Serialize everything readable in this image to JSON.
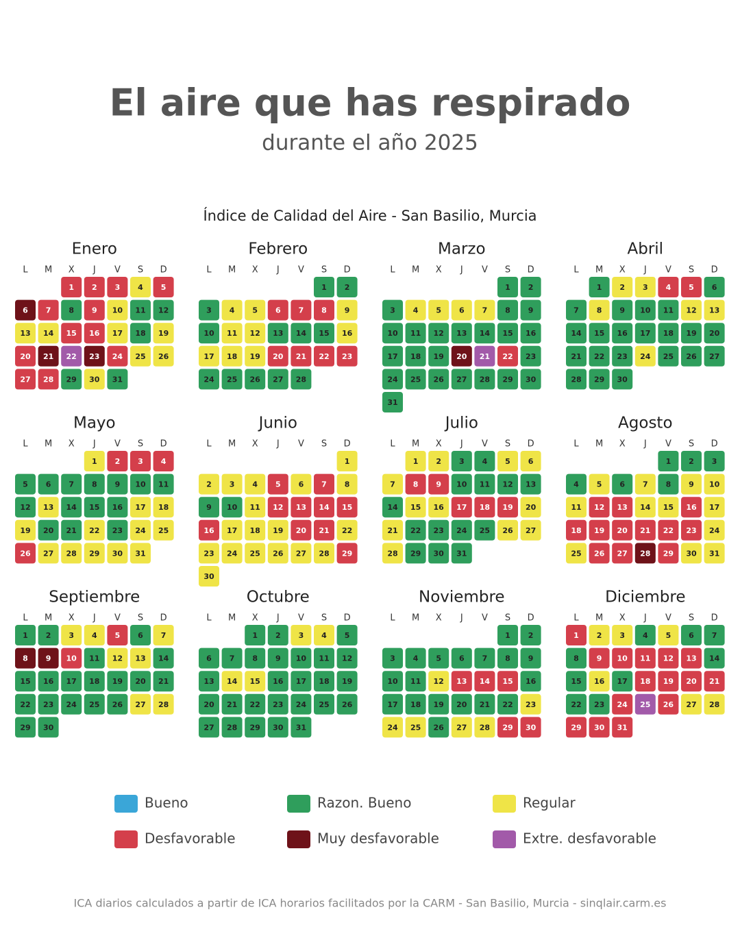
{
  "header": {
    "title": "El aire que has respirado",
    "subtitle": "durante el año 2025"
  },
  "chart_subtitle": "Índice de Calidad del Aire - San Basilio, Murcia",
  "weekdays": [
    "L",
    "M",
    "X",
    "J",
    "V",
    "S",
    "D"
  ],
  "legend": [
    {
      "label": "Bueno",
      "color": "#3aa6d8"
    },
    {
      "label": "Razon. Bueno",
      "color": "#2f9e5c"
    },
    {
      "label": "Regular",
      "color": "#efe447"
    },
    {
      "label": "Desfavorable",
      "color": "#d43f4b"
    },
    {
      "label": "Muy desfavorable",
      "color": "#6e1219"
    },
    {
      "label": "Extre. desfavorable",
      "color": "#a25aa9"
    }
  ],
  "months": [
    {
      "name": "Enero",
      "weeks": [
        [
          null,
          null,
          1,
          2,
          3,
          4,
          5
        ],
        [
          6,
          7,
          8,
          9,
          10,
          11,
          12
        ],
        [
          13,
          14,
          15,
          16,
          17,
          18,
          19
        ],
        [
          20,
          21,
          22,
          23,
          24,
          25,
          26
        ],
        [
          27,
          28,
          29,
          30,
          31
        ]
      ],
      "levels": [
        [
          null,
          null,
          3,
          3,
          3,
          2,
          3
        ],
        [
          4,
          3,
          1,
          3,
          2,
          1,
          1
        ],
        [
          2,
          2,
          3,
          3,
          2,
          1,
          2
        ],
        [
          3,
          4,
          5,
          4,
          3,
          2,
          2
        ],
        [
          3,
          3,
          1,
          2,
          1
        ]
      ]
    },
    {
      "name": "Febrero",
      "weeks": [
        [
          null,
          null,
          null,
          null,
          null,
          1,
          2
        ],
        [
          3,
          4,
          5,
          6,
          7,
          8,
          9
        ],
        [
          10,
          11,
          12,
          13,
          14,
          15,
          16
        ],
        [
          17,
          18,
          19,
          20,
          21,
          22,
          23
        ],
        [
          24,
          25,
          26,
          27,
          28
        ]
      ],
      "levels": [
        [
          null,
          null,
          null,
          null,
          null,
          1,
          1
        ],
        [
          1,
          2,
          2,
          3,
          3,
          3,
          2
        ],
        [
          1,
          2,
          2,
          1,
          1,
          1,
          2
        ],
        [
          2,
          2,
          2,
          3,
          3,
          3,
          3
        ],
        [
          1,
          1,
          1,
          1,
          1
        ]
      ]
    },
    {
      "name": "Marzo",
      "weeks": [
        [
          null,
          null,
          null,
          null,
          null,
          1,
          2
        ],
        [
          3,
          4,
          5,
          6,
          7,
          8,
          9
        ],
        [
          10,
          11,
          12,
          13,
          14,
          15,
          16
        ],
        [
          17,
          18,
          19,
          20,
          21,
          22,
          23
        ],
        [
          24,
          25,
          26,
          27,
          28,
          29,
          30
        ],
        [
          31
        ]
      ],
      "levels": [
        [
          null,
          null,
          null,
          null,
          null,
          1,
          1
        ],
        [
          1,
          2,
          2,
          2,
          2,
          1,
          1
        ],
        [
          1,
          1,
          1,
          1,
          1,
          1,
          1
        ],
        [
          1,
          1,
          1,
          4,
          5,
          3,
          1
        ],
        [
          1,
          1,
          1,
          1,
          1,
          1,
          1
        ],
        [
          1
        ]
      ]
    },
    {
      "name": "Abril",
      "weeks": [
        [
          null,
          1,
          2,
          3,
          4,
          5,
          6
        ],
        [
          7,
          8,
          9,
          10,
          11,
          12,
          13
        ],
        [
          14,
          15,
          16,
          17,
          18,
          19,
          20
        ],
        [
          21,
          22,
          23,
          24,
          25,
          26,
          27
        ],
        [
          28,
          29,
          30
        ]
      ],
      "levels": [
        [
          null,
          1,
          2,
          2,
          3,
          3,
          1
        ],
        [
          1,
          2,
          1,
          1,
          1,
          2,
          2
        ],
        [
          1,
          1,
          1,
          1,
          1,
          1,
          1
        ],
        [
          1,
          1,
          1,
          2,
          1,
          1,
          1
        ],
        [
          1,
          1,
          1
        ]
      ]
    },
    {
      "name": "Mayo",
      "weeks": [
        [
          null,
          null,
          null,
          1,
          2,
          3,
          4
        ],
        [
          5,
          6,
          7,
          8,
          9,
          10,
          11
        ],
        [
          12,
          13,
          14,
          15,
          16,
          17,
          18
        ],
        [
          19,
          20,
          21,
          22,
          23,
          24,
          25
        ],
        [
          26,
          27,
          28,
          29,
          30,
          31
        ]
      ],
      "levels": [
        [
          null,
          null,
          null,
          2,
          3,
          3,
          3
        ],
        [
          1,
          1,
          1,
          1,
          1,
          1,
          1
        ],
        [
          1,
          2,
          1,
          1,
          1,
          2,
          2
        ],
        [
          2,
          1,
          1,
          2,
          1,
          2,
          2
        ],
        [
          3,
          2,
          2,
          2,
          2,
          2
        ]
      ]
    },
    {
      "name": "Junio",
      "weeks": [
        [
          null,
          null,
          null,
          null,
          null,
          null,
          1
        ],
        [
          2,
          3,
          4,
          5,
          6,
          7,
          8
        ],
        [
          9,
          10,
          11,
          12,
          13,
          14,
          15
        ],
        [
          16,
          17,
          18,
          19,
          20,
          21,
          22
        ],
        [
          23,
          24,
          25,
          26,
          27,
          28,
          29
        ],
        [
          30
        ]
      ],
      "levels": [
        [
          null,
          null,
          null,
          null,
          null,
          null,
          2
        ],
        [
          2,
          2,
          2,
          3,
          2,
          3,
          2
        ],
        [
          1,
          1,
          2,
          3,
          3,
          3,
          3
        ],
        [
          3,
          2,
          2,
          2,
          3,
          3,
          2
        ],
        [
          2,
          2,
          2,
          2,
          2,
          2,
          3
        ],
        [
          2
        ]
      ]
    },
    {
      "name": "Julio",
      "weeks": [
        [
          null,
          1,
          2,
          3,
          4,
          5,
          6
        ],
        [
          7,
          8,
          9,
          10,
          11,
          12,
          13
        ],
        [
          14,
          15,
          16,
          17,
          18,
          19,
          20
        ],
        [
          21,
          22,
          23,
          24,
          25,
          26,
          27
        ],
        [
          28,
          29,
          30,
          31
        ]
      ],
      "levels": [
        [
          null,
          2,
          2,
          1,
          1,
          2,
          2
        ],
        [
          2,
          3,
          3,
          1,
          1,
          1,
          1
        ],
        [
          1,
          2,
          2,
          3,
          3,
          3,
          2
        ],
        [
          2,
          1,
          1,
          1,
          1,
          2,
          2
        ],
        [
          2,
          1,
          1,
          1
        ]
      ]
    },
    {
      "name": "Agosto",
      "weeks": [
        [
          null,
          null,
          null,
          null,
          1,
          2,
          3
        ],
        [
          4,
          5,
          6,
          7,
          8,
          9,
          10
        ],
        [
          11,
          12,
          13,
          14,
          15,
          16,
          17
        ],
        [
          18,
          19,
          20,
          21,
          22,
          23,
          24
        ],
        [
          25,
          26,
          27,
          28,
          29,
          30,
          31
        ]
      ],
      "levels": [
        [
          null,
          null,
          null,
          null,
          1,
          1,
          1
        ],
        [
          1,
          2,
          1,
          2,
          1,
          2,
          2
        ],
        [
          2,
          3,
          3,
          2,
          2,
          3,
          2
        ],
        [
          3,
          3,
          3,
          3,
          3,
          3,
          2
        ],
        [
          2,
          3,
          3,
          4,
          3,
          2,
          2
        ]
      ]
    },
    {
      "name": "Septiembre",
      "weeks": [
        [
          1,
          2,
          3,
          4,
          5,
          6,
          7
        ],
        [
          8,
          9,
          10,
          11,
          12,
          13,
          14
        ],
        [
          15,
          16,
          17,
          18,
          19,
          20,
          21
        ],
        [
          22,
          23,
          24,
          25,
          26,
          27,
          28
        ],
        [
          29,
          30
        ]
      ],
      "levels": [
        [
          1,
          1,
          2,
          2,
          3,
          1,
          2
        ],
        [
          4,
          4,
          3,
          1,
          2,
          2,
          1
        ],
        [
          1,
          1,
          1,
          1,
          1,
          1,
          1
        ],
        [
          1,
          1,
          1,
          1,
          1,
          2,
          2
        ],
        [
          1,
          1
        ]
      ]
    },
    {
      "name": "Octubre",
      "weeks": [
        [
          null,
          null,
          1,
          2,
          3,
          4,
          5
        ],
        [
          6,
          7,
          8,
          9,
          10,
          11,
          12
        ],
        [
          13,
          14,
          15,
          16,
          17,
          18,
          19
        ],
        [
          20,
          21,
          22,
          23,
          24,
          25,
          26
        ],
        [
          27,
          28,
          29,
          30,
          31
        ]
      ],
      "levels": [
        [
          null,
          null,
          1,
          1,
          2,
          2,
          1
        ],
        [
          1,
          1,
          1,
          1,
          1,
          1,
          1
        ],
        [
          1,
          2,
          2,
          1,
          1,
          1,
          1
        ],
        [
          1,
          1,
          1,
          1,
          1,
          1,
          1
        ],
        [
          1,
          1,
          1,
          1,
          1
        ]
      ]
    },
    {
      "name": "Noviembre",
      "weeks": [
        [
          null,
          null,
          null,
          null,
          null,
          1,
          2
        ],
        [
          3,
          4,
          5,
          6,
          7,
          8,
          9
        ],
        [
          10,
          11,
          12,
          13,
          14,
          15,
          16
        ],
        [
          17,
          18,
          19,
          20,
          21,
          22,
          23
        ],
        [
          24,
          25,
          26,
          27,
          28,
          29,
          30
        ]
      ],
      "levels": [
        [
          null,
          null,
          null,
          null,
          null,
          1,
          1
        ],
        [
          1,
          1,
          1,
          1,
          1,
          1,
          1
        ],
        [
          1,
          1,
          2,
          3,
          3,
          3,
          1
        ],
        [
          1,
          1,
          1,
          1,
          1,
          1,
          2
        ],
        [
          2,
          2,
          1,
          2,
          2,
          3,
          3
        ]
      ]
    },
    {
      "name": "Diciembre",
      "weeks": [
        [
          1,
          2,
          3,
          4,
          5,
          6,
          7
        ],
        [
          8,
          9,
          10,
          11,
          12,
          13,
          14
        ],
        [
          15,
          16,
          17,
          18,
          19,
          20,
          21
        ],
        [
          22,
          23,
          24,
          25,
          26,
          27,
          28
        ],
        [
          29,
          30,
          31
        ]
      ],
      "levels": [
        [
          3,
          2,
          2,
          1,
          2,
          1,
          1
        ],
        [
          1,
          3,
          3,
          3,
          3,
          3,
          1
        ],
        [
          1,
          2,
          1,
          3,
          3,
          3,
          3
        ],
        [
          1,
          1,
          3,
          5,
          3,
          2,
          2
        ],
        [
          3,
          3,
          3
        ]
      ]
    }
  ],
  "footer": "ICA diarios calculados a partir de ICA horarios facilitados por la CARM - San Basilio, Murcia - sinqlair.carm.es"
}
